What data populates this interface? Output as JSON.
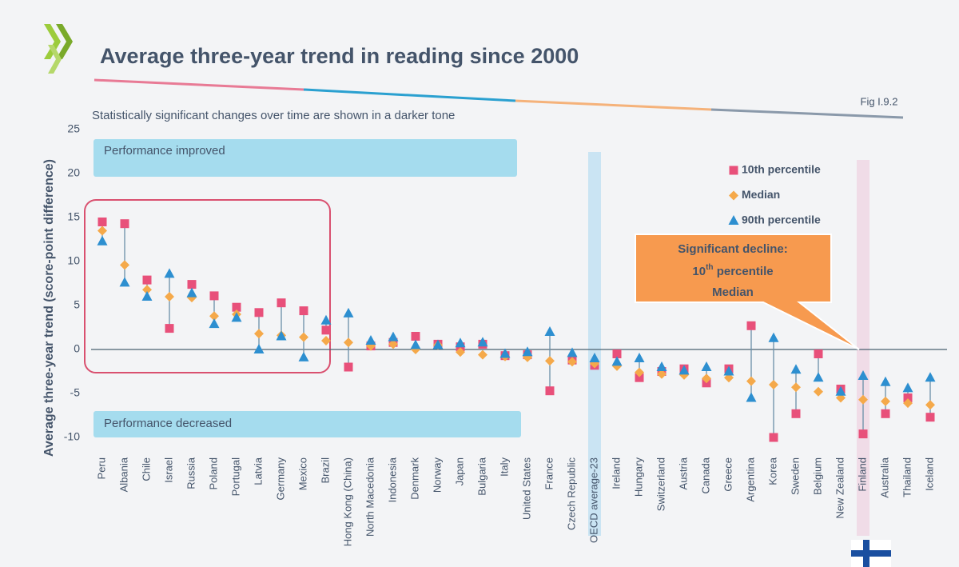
{
  "chart_data": {
    "type": "range-dot",
    "title": "Average three-year trend in reading since 2000",
    "subtitle": "Statistically significant changes over time are shown in a darker tone",
    "figure_label": "Fig I.9.2",
    "y_label": "Average three-year trend (score-point difference)",
    "annotations": {
      "improved": "Performance improved",
      "decreased": "Performance decreased",
      "callout": [
        "Significant decline:",
        "10",
        "th",
        " percentile",
        "Median"
      ]
    },
    "categories": [
      "Peru",
      "Albania",
      "Chile",
      "Israel",
      "Russia",
      "Poland",
      "Portugal",
      "Latvia",
      "Germany",
      "Mexico",
      "Brazil",
      "Hong Kong (China)",
      "North Macedonia",
      "Indonesia",
      "Denmark",
      "Norway",
      "Japan",
      "Bulgaria",
      "Italy",
      "United States",
      "France",
      "Czech Republic",
      "OECD average-23",
      "Ireland",
      "Hungary",
      "Switzerland",
      "Austria",
      "Canada",
      "Greece",
      "Argentina",
      "Korea",
      "Sweden",
      "Belgium",
      "New Zealand",
      "Finland",
      "Australia",
      "Thailand",
      "Iceland"
    ],
    "series": [
      {
        "name": "10th percentile",
        "color": "#e8507a",
        "marker": "square",
        "values": [
          14.5,
          14.3,
          7.9,
          2.4,
          7.4,
          6.1,
          4.8,
          4.2,
          5.3,
          4.4,
          2.2,
          -2.0,
          0.4,
          0.8,
          1.5,
          0.6,
          0.3,
          0.6,
          -0.7,
          -0.6,
          -4.7,
          -1.2,
          -1.8,
          -0.5,
          -3.2,
          -2.5,
          -2.2,
          -3.8,
          -2.2,
          2.7,
          -10.0,
          -7.3,
          -0.5,
          -4.5,
          -9.6,
          -7.3,
          -5.5,
          -7.7
        ]
      },
      {
        "name": "Median",
        "color": "#f5a94a",
        "marker": "diamond",
        "values": [
          13.5,
          9.6,
          6.8,
          6.0,
          5.9,
          3.8,
          4.0,
          1.8,
          1.6,
          1.4,
          1.0,
          0.8,
          0.4,
          0.6,
          0.0,
          0.5,
          -0.3,
          -0.6,
          -0.8,
          -0.9,
          -1.3,
          -1.4,
          -1.6,
          -1.9,
          -2.6,
          -2.8,
          -2.9,
          -3.3,
          -3.2,
          -3.6,
          -4.0,
          -4.3,
          -4.8,
          -5.5,
          -5.7,
          -5.9,
          -6.1,
          -6.3
        ]
      },
      {
        "name": "90th percentile",
        "color": "#2d8fd0",
        "marker": "triangle",
        "values": [
          12.3,
          7.6,
          6.0,
          8.6,
          6.4,
          2.9,
          3.6,
          0.0,
          1.5,
          -0.9,
          3.3,
          4.1,
          1.0,
          1.4,
          0.5,
          0.5,
          0.7,
          0.8,
          -0.5,
          -0.3,
          2.0,
          -0.4,
          -1.0,
          -1.4,
          -1.0,
          -2.0,
          -2.4,
          -2.0,
          -2.5,
          -5.5,
          1.3,
          -2.3,
          -3.2,
          -4.8,
          -3.0,
          -3.7,
          -4.4,
          -3.2
        ]
      }
    ],
    "ylim": [
      -11,
      26
    ],
    "yticks": [
      25,
      20,
      15,
      10,
      5,
      0,
      -5,
      -10
    ]
  }
}
